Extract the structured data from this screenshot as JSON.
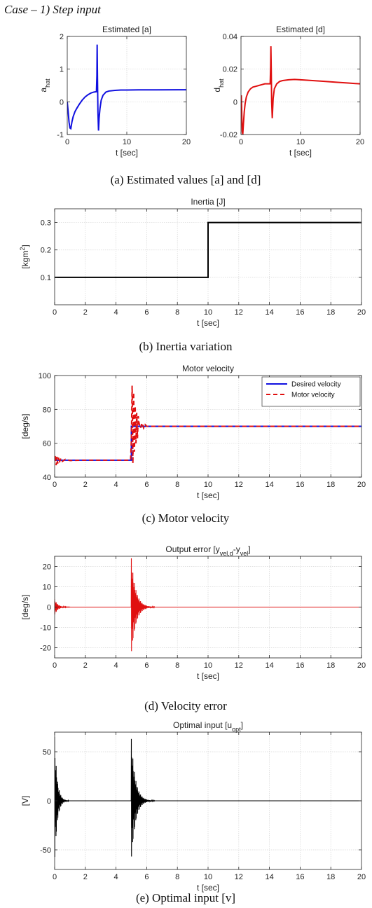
{
  "heading": "Case – 1) Step input",
  "captions": [
    "(a) Estimated values [a] and [d]",
    "(b) Inertia variation",
    "(c) Motor velocity",
    "(d) Velocity error",
    "(e) Optimal input [v]"
  ],
  "chart_data": [
    {
      "id": "a",
      "type": "line",
      "title": "Estimated [a]",
      "xlabel": "t [sec]",
      "ylabel": "a",
      "ylabel_sub": "hat",
      "xlim": [
        0,
        20
      ],
      "ylim": [
        -1,
        2
      ],
      "xticks": [
        0,
        10,
        20
      ],
      "yticks": [
        -1,
        0,
        1,
        2
      ],
      "grid": true,
      "series": [
        {
          "color": "#1010e0",
          "x": [
            0,
            0.15,
            0.3,
            0.45,
            0.6,
            0.8,
            1.0,
            1.3,
            1.6,
            2.0,
            2.5,
            3.0,
            3.5,
            4.0,
            4.5,
            4.9,
            4.98,
            5.02,
            5.08,
            5.15,
            5.25,
            5.35,
            5.5,
            5.7,
            6.0,
            6.5,
            7.0,
            8.0,
            9.0,
            10.0,
            12.0,
            15.0,
            20.0
          ],
          "y": [
            0,
            -0.3,
            -0.62,
            -0.8,
            -0.82,
            -0.6,
            -0.45,
            -0.3,
            -0.2,
            -0.08,
            0.05,
            0.15,
            0.22,
            0.27,
            0.3,
            0.31,
            0.8,
            1.75,
            0.7,
            -0.3,
            -0.88,
            -0.5,
            -0.2,
            0.05,
            0.2,
            0.3,
            0.33,
            0.35,
            0.36,
            0.36,
            0.365,
            0.365,
            0.37
          ]
        }
      ]
    },
    {
      "id": "d",
      "type": "line",
      "title": "Estimated [d]",
      "xlabel": "t [sec]",
      "ylabel": "d",
      "ylabel_sub": "hat",
      "xlim": [
        0,
        20
      ],
      "ylim": [
        -0.02,
        0.04
      ],
      "xticks": [
        0,
        10,
        20
      ],
      "yticks": [
        -0.02,
        0,
        0.02,
        0.04
      ],
      "grid": true,
      "series": [
        {
          "color": "#e01010",
          "x": [
            0,
            0.05,
            0.12,
            0.2,
            0.3,
            0.4,
            0.55,
            0.7,
            0.9,
            1.2,
            1.6,
            2.0,
            2.5,
            3.0,
            3.5,
            4.0,
            4.5,
            4.9,
            4.98,
            5.02,
            5.08,
            5.15,
            5.25,
            5.4,
            5.6,
            6.0,
            6.5,
            7.0,
            8.0,
            9.0,
            10.0,
            12.0,
            14.0,
            16.0,
            18.0,
            20.0
          ],
          "y": [
            0,
            0.004,
            -0.005,
            -0.018,
            -0.02,
            -0.014,
            -0.006,
            -0.001,
            0.003,
            0.006,
            0.008,
            0.009,
            0.0095,
            0.01,
            0.0105,
            0.011,
            0.011,
            0.011,
            0.022,
            0.034,
            0.02,
            0.0,
            -0.01,
            0.002,
            0.008,
            0.011,
            0.0125,
            0.013,
            0.0135,
            0.0137,
            0.0135,
            0.013,
            0.0125,
            0.012,
            0.0115,
            0.011
          ]
        }
      ]
    },
    {
      "id": "b",
      "type": "line",
      "title": "Inertia [J]",
      "xlabel": "t [sec]",
      "ylabel": "[kgm",
      "ylabel_sup": "2",
      "ylabel_end": "]",
      "xlim": [
        0,
        20
      ],
      "ylim": [
        0,
        0.35
      ],
      "xticks": [
        0,
        2,
        4,
        6,
        8,
        10,
        12,
        14,
        16,
        18,
        20
      ],
      "yticks": [
        0.1,
        0.2,
        0.3
      ],
      "grid": true,
      "series": [
        {
          "color": "#000000",
          "x": [
            0,
            10,
            10,
            20
          ],
          "y": [
            0.1,
            0.1,
            0.3,
            0.3
          ]
        }
      ]
    },
    {
      "id": "c",
      "type": "line",
      "title": "Motor velocity",
      "xlabel": "t [sec]",
      "ylabel": "[deg/s]",
      "xlim": [
        0,
        20
      ],
      "ylim": [
        40,
        100
      ],
      "xticks": [
        0,
        2,
        4,
        6,
        8,
        10,
        12,
        14,
        16,
        18,
        20
      ],
      "yticks": [
        40,
        60,
        80,
        100
      ],
      "grid": true,
      "legend_position": "top-right",
      "series": [
        {
          "name": "Desired velocity",
          "color": "#1010e0",
          "dash": false,
          "x": [
            0,
            5,
            5,
            20
          ],
          "y": [
            50,
            50,
            70,
            70
          ]
        },
        {
          "name": "Motor velocity",
          "color": "#e01010",
          "dash": true,
          "x": [
            0,
            0.05,
            0.1,
            0.15,
            0.2,
            0.25,
            0.3,
            0.4,
            0.5,
            0.7,
            1.0,
            2.0,
            3.0,
            4.0,
            4.95,
            5.0,
            5.05,
            5.1,
            5.15,
            5.2,
            5.25,
            5.3,
            5.35,
            5.4,
            5.45,
            5.5,
            5.6,
            5.7,
            5.8,
            5.9,
            6.0,
            6.2,
            6.5,
            7.0,
            10.0,
            15.0,
            20.0
          ],
          "y": [
            50,
            53,
            47,
            52,
            48,
            51.5,
            48.5,
            51,
            49.3,
            50.5,
            49.8,
            50,
            50,
            50,
            50,
            62,
            94,
            48,
            90,
            55,
            82,
            60,
            78,
            63,
            76,
            72,
            69,
            72,
            69,
            71,
            70,
            70,
            70,
            70,
            70,
            70,
            70
          ]
        }
      ]
    },
    {
      "id": "d-err",
      "type": "line",
      "title": "Output error [y",
      "title_sub": "vel,d",
      "title_mid": "-y",
      "title_sub2": "vel",
      "title_end": "]",
      "xlabel": "t [sec]",
      "ylabel": "[deg/s]",
      "xlim": [
        0,
        20
      ],
      "ylim": [
        -25,
        25
      ],
      "xticks": [
        0,
        2,
        4,
        6,
        8,
        10,
        12,
        14,
        16,
        18,
        20
      ],
      "yticks": [
        -20,
        -10,
        0,
        10,
        20
      ],
      "grid": true,
      "oscillations": [
        {
          "start": 0.0,
          "amp": 4,
          "decay": 5,
          "freq": 40,
          "duration": 1.0
        },
        {
          "start": 5.0,
          "amp": 24,
          "decay": 3.5,
          "freq": 40,
          "duration": 1.5
        }
      ],
      "series": [
        {
          "color": "#e01010"
        }
      ]
    },
    {
      "id": "e",
      "type": "line",
      "title": "Optimal input [u",
      "title_sub": "opt",
      "title_end": "]",
      "xlabel": "t [sec]",
      "ylabel": "[V]",
      "xlim": [
        0,
        20
      ],
      "ylim": [
        -70,
        70
      ],
      "xticks": [
        0,
        2,
        4,
        6,
        8,
        10,
        12,
        14,
        16,
        18,
        20
      ],
      "yticks": [
        -50,
        0,
        50
      ],
      "grid": true,
      "oscillations": [
        {
          "start": 0.0,
          "amp": 65,
          "decay": 6,
          "freq": 40,
          "duration": 0.9
        },
        {
          "start": 5.0,
          "amp": 63,
          "decay": 3.8,
          "freq": 40,
          "duration": 1.5
        }
      ],
      "series": [
        {
          "color": "#000000"
        }
      ]
    }
  ]
}
